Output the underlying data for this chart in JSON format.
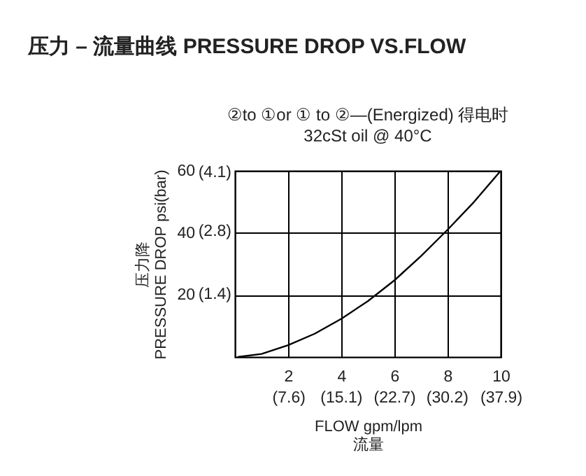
{
  "chart_data": {
    "type": "line",
    "title": "压力 – 流量曲线 PRESSURE DROP VS.FLOW",
    "subtitle": "②to ①or ① to ②—(Energized)   得电时\n32cSt oil @ 40°C",
    "xlabel": "FLOW gpm/lpm\n流量",
    "ylabel": "压力降\nPRESSURE DROP psi(bar)",
    "series": [
      {
        "color": "#000000",
        "x": [
          0.1,
          1,
          2,
          3,
          4,
          5,
          6,
          7,
          8,
          9,
          10
        ],
        "values": [
          0,
          1,
          3.8,
          7.5,
          12.3,
          18,
          24.7,
          32.5,
          41,
          50,
          60
        ]
      }
    ],
    "xlim": [
      0,
      10
    ],
    "xticks": [
      2,
      4,
      6,
      8,
      10
    ],
    "x2lim": [
      0,
      37.9
    ],
    "x2ticks": [
      {
        "value": 7.6,
        "label": "(7.6)"
      },
      {
        "value": 15.1,
        "label": "(15.1)"
      },
      {
        "value": 22.7,
        "label": "(22.7)"
      },
      {
        "value": 30.2,
        "label": "(30.2)"
      },
      {
        "value": 37.9,
        "label": "(37.9)"
      }
    ],
    "ylim": [
      0,
      60
    ],
    "yticks": [
      20,
      40,
      60
    ],
    "y2lim": [
      0,
      4.137
    ],
    "y2ticks": [
      {
        "value": 1.4,
        "label": "(1.4)"
      },
      {
        "value": 2.8,
        "label": "(2.8)"
      },
      {
        "value": 4.1,
        "label": "(4.1)"
      }
    ],
    "grid": true,
    "marker": "none",
    "line_style": "solid"
  }
}
